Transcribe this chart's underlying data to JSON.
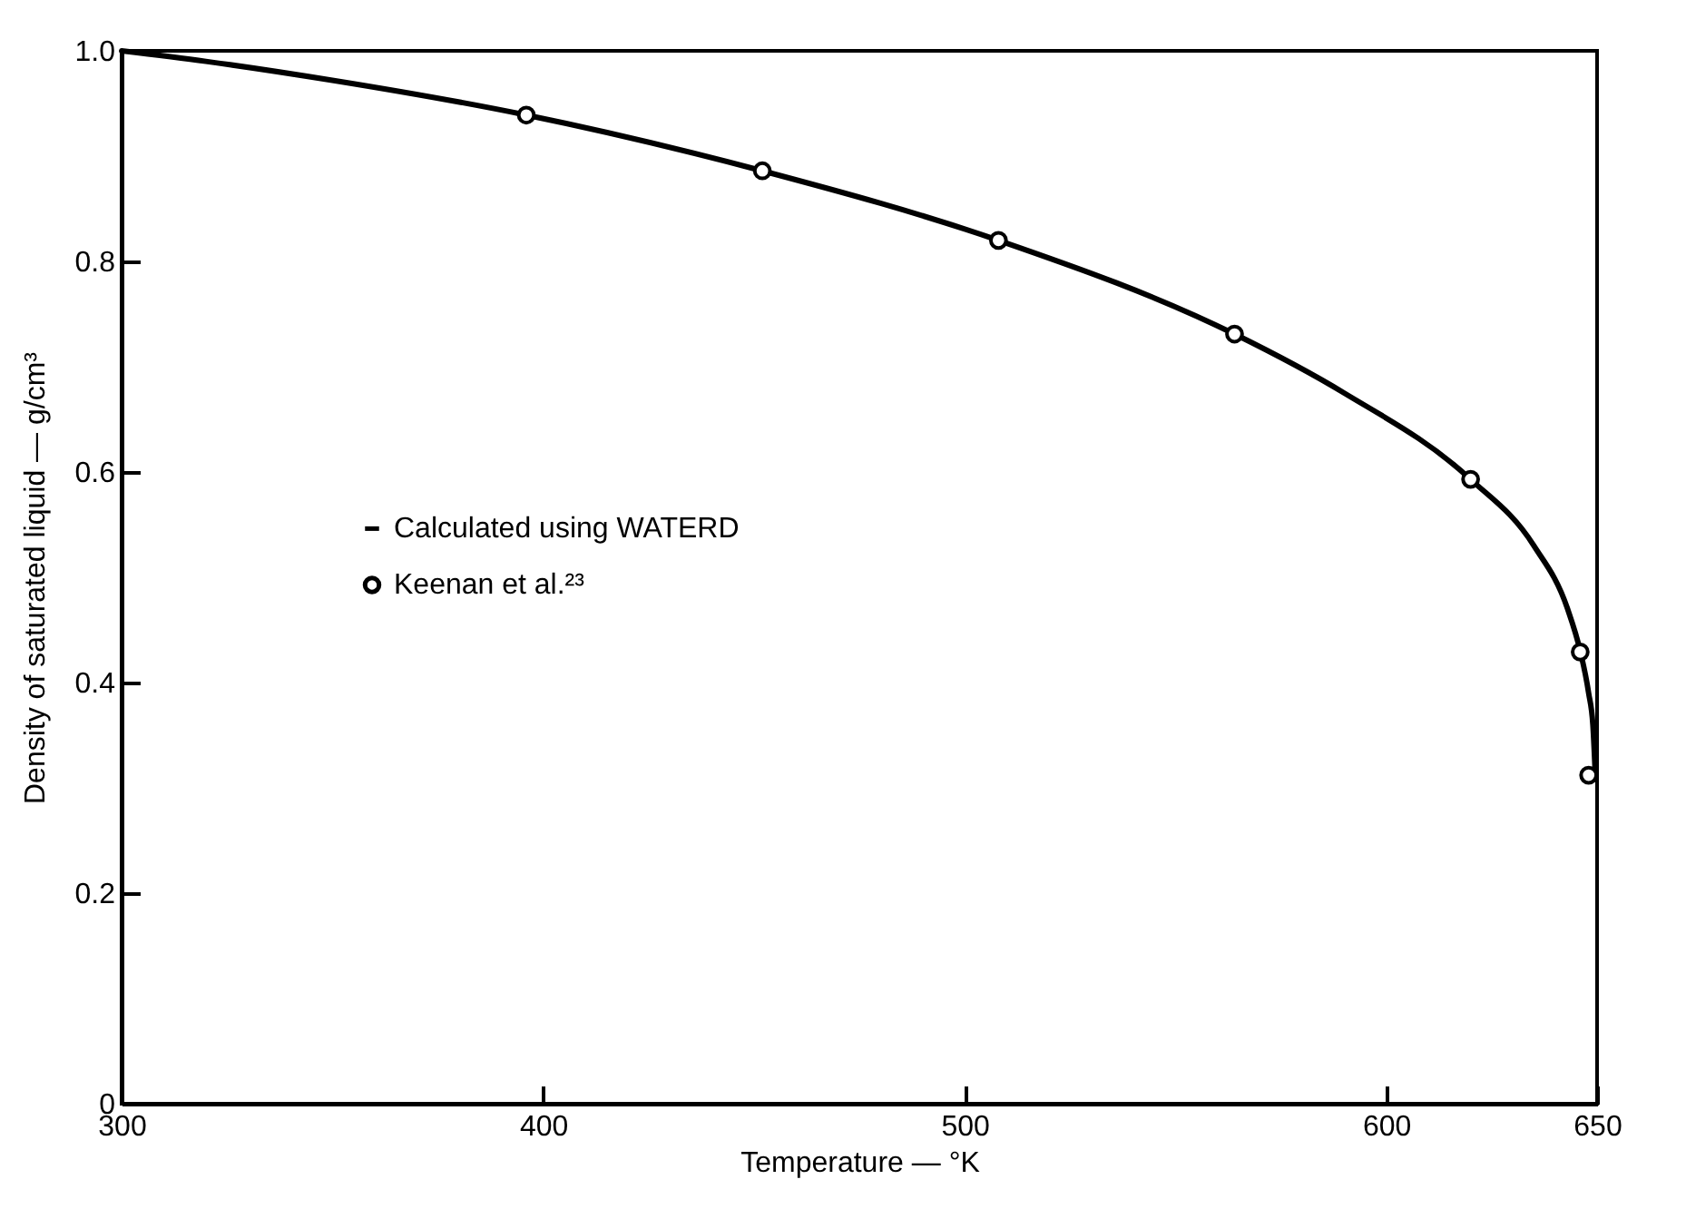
{
  "chart_data": {
    "type": "line",
    "xlabel": "Temperature — °K",
    "ylabel": "Density of saturated liquid — g/cm³",
    "xlim": [
      300,
      650
    ],
    "xticks": [
      300,
      400,
      500,
      600,
      650
    ],
    "ylim": [
      0,
      1.0
    ],
    "yticks": [
      0,
      {
        "value": 0.2,
        "label": "0.2"
      },
      {
        "value": 0.4,
        "label": "0.4"
      },
      {
        "value": 0.6,
        "label": "0.6"
      },
      {
        "value": 0.8,
        "label": "0.8"
      },
      {
        "value": 1.0,
        "label": "1.0"
      }
    ],
    "grid": false,
    "legend": "left",
    "series": [
      {
        "name": "Calculated using WATERD",
        "color": "#000000",
        "marker": "none",
        "x": [
          300,
          320,
          350,
          396,
          452,
          508,
          564,
          590,
          620,
          635,
          643,
          646,
          648,
          649,
          649.5
        ],
        "values": [
          1.0,
          0.99,
          0.972,
          0.939,
          0.886,
          0.82,
          0.731,
          0.675,
          0.593,
          0.53,
          0.47,
          0.43,
          0.39,
          0.36,
          0.32
        ]
      },
      {
        "name": "Keenan et al.²³",
        "type": "scatter",
        "color": "#000000",
        "marker": "circle",
        "x": [
          396,
          452,
          508,
          564,
          620,
          646,
          648
        ],
        "values": [
          0.939,
          0.886,
          0.82,
          0.731,
          0.593,
          0.429,
          0.312
        ]
      }
    ]
  }
}
